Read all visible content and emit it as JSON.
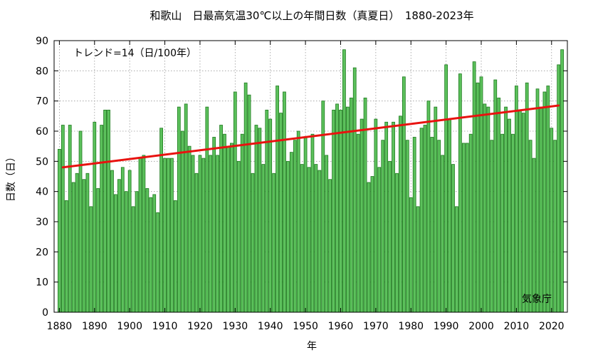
{
  "chart_data": {
    "type": "bar",
    "title": "和歌山　日最高気温30℃以上の年間日数（真夏日）　1880-2023年",
    "xlabel": "年",
    "ylabel": "日数（日）",
    "annotation": "トレンド=14（日/100年）",
    "credit": "気象庁",
    "ylim": [
      0,
      90
    ],
    "xlim": [
      1878.5,
      2024.5
    ],
    "yticks": [
      0,
      10,
      20,
      30,
      40,
      50,
      60,
      70,
      80,
      90
    ],
    "xticks": [
      1880,
      1890,
      1900,
      1910,
      1920,
      1930,
      1940,
      1950,
      1960,
      1970,
      1980,
      1990,
      2000,
      2010,
      2020
    ],
    "grid": true,
    "bar_color": "#5cc15c",
    "bar_edge_color": "#1e7a1e",
    "trend_color": "#e8120f",
    "trend": {
      "x": [
        1881,
        2022
      ],
      "y": [
        48,
        68.5
      ]
    },
    "x": [
      1880,
      1881,
      1882,
      1883,
      1884,
      1885,
      1886,
      1887,
      1888,
      1889,
      1890,
      1891,
      1892,
      1893,
      1894,
      1895,
      1896,
      1897,
      1898,
      1899,
      1900,
      1901,
      1902,
      1903,
      1904,
      1905,
      1906,
      1907,
      1908,
      1909,
      1910,
      1911,
      1912,
      1913,
      1914,
      1915,
      1916,
      1917,
      1918,
      1919,
      1920,
      1921,
      1922,
      1923,
      1924,
      1925,
      1926,
      1927,
      1928,
      1929,
      1930,
      1931,
      1932,
      1933,
      1934,
      1935,
      1936,
      1937,
      1938,
      1939,
      1940,
      1941,
      1942,
      1943,
      1944,
      1945,
      1946,
      1947,
      1948,
      1949,
      1950,
      1951,
      1952,
      1953,
      1954,
      1955,
      1956,
      1957,
      1958,
      1959,
      1960,
      1961,
      1962,
      1963,
      1964,
      1965,
      1966,
      1967,
      1968,
      1969,
      1970,
      1971,
      1972,
      1973,
      1974,
      1975,
      1976,
      1977,
      1978,
      1979,
      1980,
      1981,
      1982,
      1983,
      1984,
      1985,
      1986,
      1987,
      1988,
      1989,
      1990,
      1991,
      1992,
      1993,
      1994,
      1995,
      1996,
      1997,
      1998,
      1999,
      2000,
      2001,
      2002,
      2003,
      2004,
      2005,
      2006,
      2007,
      2008,
      2009,
      2010,
      2011,
      2012,
      2013,
      2014,
      2015,
      2016,
      2017,
      2018,
      2019,
      2020,
      2021,
      2022,
      2023
    ],
    "values": [
      54,
      62,
      37,
      62,
      43,
      46,
      60,
      44,
      46,
      35,
      63,
      41,
      62,
      67,
      67,
      47,
      39,
      44,
      48,
      40,
      47,
      35,
      40,
      51,
      52,
      41,
      38,
      39,
      33,
      61,
      51,
      51,
      51,
      37,
      68,
      60,
      69,
      55,
      52,
      46,
      52,
      51,
      68,
      52,
      58,
      52,
      62,
      59,
      55,
      56,
      73,
      50,
      59,
      76,
      72,
      46,
      62,
      61,
      49,
      67,
      64,
      46,
      75,
      66,
      73,
      50,
      53,
      57,
      60,
      49,
      58,
      48,
      59,
      49,
      47,
      70,
      52,
      44,
      67,
      69,
      67,
      87,
      68,
      71,
      81,
      59,
      64,
      71,
      43,
      45,
      64,
      48,
      57,
      63,
      50,
      63,
      46,
      65,
      78,
      57,
      38,
      58,
      35,
      61,
      62,
      70,
      58,
      68,
      57,
      52,
      82,
      64,
      49,
      35,
      79,
      56,
      56,
      59,
      83,
      76,
      78,
      69,
      68,
      57,
      77,
      71,
      59,
      68,
      64,
      59,
      75,
      67,
      66,
      76,
      57,
      51,
      74,
      68,
      73,
      75,
      61,
      57,
      82,
      87
    ]
  }
}
